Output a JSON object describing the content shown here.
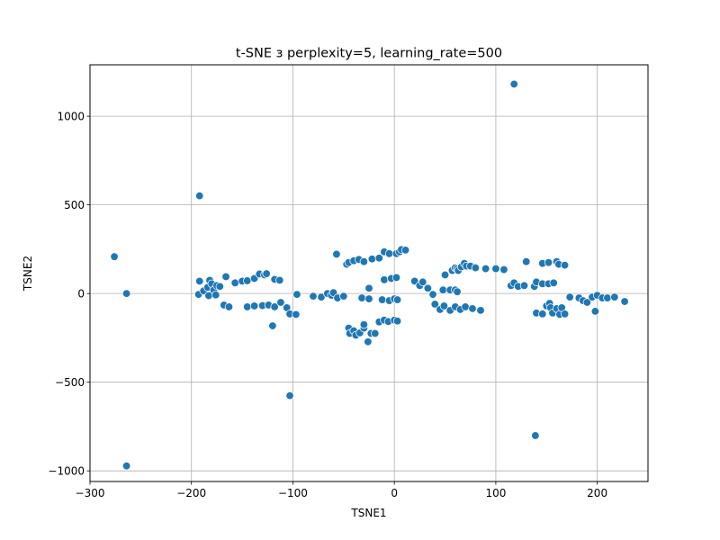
{
  "chart_data": {
    "type": "scatter",
    "title": "t-SNE з perplexity=5, learning_rate=500",
    "xlabel": "TSNE1",
    "ylabel": "TSNE2",
    "xlim": [
      -300,
      250
    ],
    "ylim": [
      -1060,
      1290
    ],
    "xticks": [
      -300,
      -200,
      -100,
      0,
      100,
      200
    ],
    "xtick_labels": [
      "−300",
      "−200",
      "−100",
      "0",
      "100",
      "200"
    ],
    "yticks": [
      -1000,
      -500,
      0,
      500,
      1000
    ],
    "ytick_labels": [
      "−1000",
      "−500",
      "0",
      "500",
      "1000"
    ],
    "grid": true,
    "marker_color": "#1f77b4",
    "points": [
      [
        -276,
        208
      ],
      [
        -264,
        0
      ],
      [
        -264,
        -972
      ],
      [
        -192,
        551
      ],
      [
        -103,
        -576
      ],
      [
        118,
        1181
      ],
      [
        139,
        -801
      ],
      [
        -192,
        70
      ],
      [
        -193,
        -5
      ],
      [
        -188,
        15
      ],
      [
        -184,
        35
      ],
      [
        -182,
        75
      ],
      [
        -180,
        55
      ],
      [
        -183,
        -12
      ],
      [
        -178,
        20
      ],
      [
        -175,
        45
      ],
      [
        -176,
        -8
      ],
      [
        -172,
        40
      ],
      [
        -168,
        -65
      ],
      [
        -166,
        95
      ],
      [
        -163,
        -75
      ],
      [
        -157,
        60
      ],
      [
        -150,
        70
      ],
      [
        -145,
        72
      ],
      [
        -138,
        85
      ],
      [
        -133,
        110
      ],
      [
        -128,
        105
      ],
      [
        -126,
        112
      ],
      [
        -118,
        80
      ],
      [
        -113,
        75
      ],
      [
        -145,
        -75
      ],
      [
        -138,
        -70
      ],
      [
        -130,
        -68
      ],
      [
        -124,
        -65
      ],
      [
        -118,
        -75
      ],
      [
        -112,
        -50
      ],
      [
        -106,
        -80
      ],
      [
        -103,
        -115
      ],
      [
        -97,
        -118
      ],
      [
        -120,
        -182
      ],
      [
        -96,
        -5
      ],
      [
        -80,
        -15
      ],
      [
        -72,
        -20
      ],
      [
        -66,
        0
      ],
      [
        -62,
        -10
      ],
      [
        -60,
        5
      ],
      [
        -56,
        -25
      ],
      [
        -50,
        -15
      ],
      [
        -57,
        222
      ],
      [
        -47,
        165
      ],
      [
        -45,
        175
      ],
      [
        -40,
        185
      ],
      [
        -35,
        192
      ],
      [
        -30,
        180
      ],
      [
        -22,
        195
      ],
      [
        -15,
        200
      ],
      [
        -10,
        235
      ],
      [
        -5,
        225
      ],
      [
        2,
        225
      ],
      [
        5,
        235
      ],
      [
        7,
        248
      ],
      [
        11,
        245
      ],
      [
        -45,
        -195
      ],
      [
        -44,
        -225
      ],
      [
        -40,
        -210
      ],
      [
        -38,
        -235
      ],
      [
        -34,
        -222
      ],
      [
        -30,
        -195
      ],
      [
        -30,
        -175
      ],
      [
        -26,
        -272
      ],
      [
        -23,
        -225
      ],
      [
        -19,
        -225
      ],
      [
        -15,
        -160
      ],
      [
        -10,
        -150
      ],
      [
        -6,
        -158
      ],
      [
        0,
        -150
      ],
      [
        3,
        -155
      ],
      [
        -32,
        -25
      ],
      [
        -25,
        -30
      ],
      [
        -25,
        30
      ],
      [
        -12,
        -35
      ],
      [
        -5,
        -40
      ],
      [
        -10,
        78
      ],
      [
        -3,
        85
      ],
      [
        2,
        90
      ],
      [
        0,
        -30
      ],
      [
        3,
        -35
      ],
      [
        20,
        70
      ],
      [
        25,
        45
      ],
      [
        28,
        65
      ],
      [
        33,
        30
      ],
      [
        38,
        -5
      ],
      [
        40,
        -60
      ],
      [
        45,
        -90
      ],
      [
        48,
        20
      ],
      [
        50,
        105
      ],
      [
        55,
        20
      ],
      [
        57,
        130
      ],
      [
        60,
        145
      ],
      [
        62,
        140
      ],
      [
        63,
        130
      ],
      [
        66,
        150
      ],
      [
        69,
        170
      ],
      [
        71,
        155
      ],
      [
        75,
        155
      ],
      [
        80,
        145
      ],
      [
        90,
        140
      ],
      [
        100,
        140
      ],
      [
        108,
        135
      ],
      [
        60,
        20
      ],
      [
        62,
        10
      ],
      [
        49,
        -70
      ],
      [
        55,
        -95
      ],
      [
        60,
        -75
      ],
      [
        65,
        -90
      ],
      [
        70,
        -75
      ],
      [
        77,
        -85
      ],
      [
        85,
        -95
      ],
      [
        115,
        45
      ],
      [
        118,
        60
      ],
      [
        122,
        40
      ],
      [
        128,
        45
      ],
      [
        130,
        180
      ],
      [
        138,
        40
      ],
      [
        140,
        65
      ],
      [
        146,
        55
      ],
      [
        146,
        170
      ],
      [
        152,
        175
      ],
      [
        152,
        55
      ],
      [
        157,
        60
      ],
      [
        160,
        180
      ],
      [
        162,
        165
      ],
      [
        168,
        160
      ],
      [
        140,
        -110
      ],
      [
        146,
        -115
      ],
      [
        150,
        -70
      ],
      [
        153,
        -55
      ],
      [
        154,
        -80
      ],
      [
        156,
        -110
      ],
      [
        160,
        -85
      ],
      [
        163,
        -118
      ],
      [
        165,
        -80
      ],
      [
        168,
        -115
      ],
      [
        173,
        -20
      ],
      [
        182,
        -25
      ],
      [
        186,
        -40
      ],
      [
        190,
        -50
      ],
      [
        195,
        -20
      ],
      [
        198,
        -100
      ],
      [
        200,
        -10
      ],
      [
        205,
        -25
      ],
      [
        210,
        -25
      ],
      [
        217,
        -20
      ],
      [
        227,
        -45
      ]
    ]
  }
}
